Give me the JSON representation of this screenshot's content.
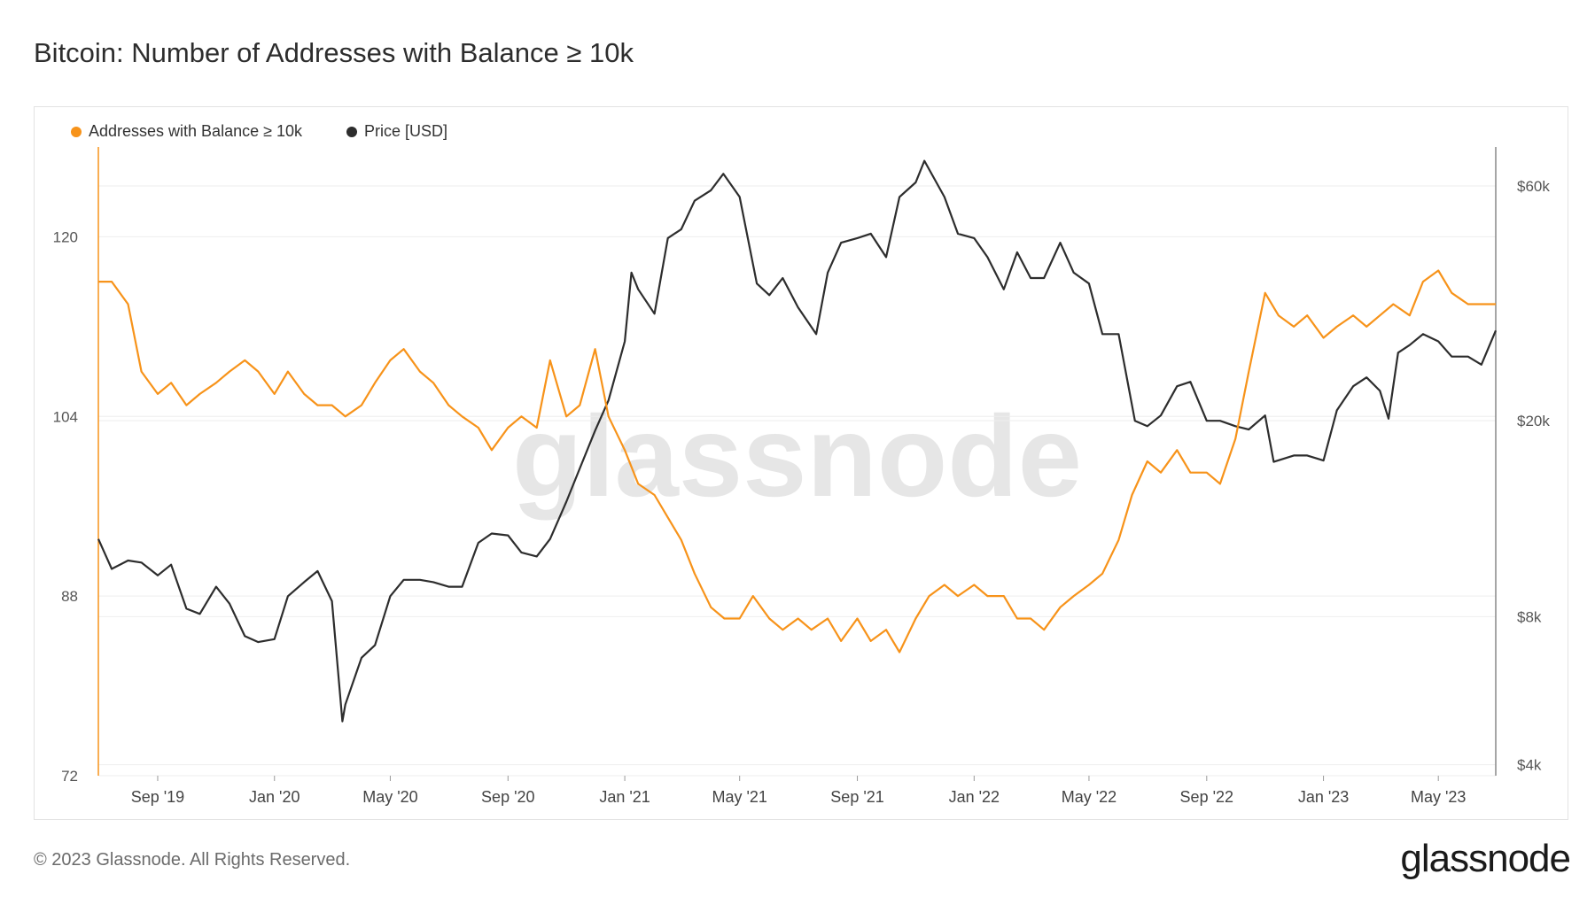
{
  "title": "Bitcoin: Number of Addresses with Balance ≥ 10k",
  "footer": "© 2023 Glassnode. All Rights Reserved.",
  "brand": "glassnode",
  "watermark": "glassnode",
  "colors": {
    "addresses": "#f7931a",
    "price": "#2d2d2d",
    "grid": "#eeeeee"
  },
  "chart_data": {
    "type": "line",
    "legend_position": "top-left",
    "grid": true,
    "x_ticks": [
      "Sep '19",
      "Jan '20",
      "May '20",
      "Sep '20",
      "Jan '21",
      "May '21",
      "Sep '21",
      "Jan '22",
      "May '22",
      "Sep '22",
      "Jan '23",
      "May '23"
    ],
    "x_range": [
      "2019-07-01",
      "2023-06-30"
    ],
    "y_left": {
      "ticks": [
        "120",
        "104",
        "88",
        "72"
      ],
      "ylim": [
        72,
        128
      ]
    },
    "y_right": {
      "scale": "log",
      "ticks": [
        "$60k",
        "$20k",
        "$8k",
        "$4k"
      ],
      "ylim": [
        3800,
        72000
      ]
    },
    "series": [
      {
        "name": "Addresses with Balance ≥ 10k",
        "axis": "left",
        "x": [
          "2019-07-01",
          "2019-07-15",
          "2019-08-01",
          "2019-08-15",
          "2019-09-01",
          "2019-09-15",
          "2019-10-01",
          "2019-10-15",
          "2019-11-01",
          "2019-11-15",
          "2019-12-01",
          "2019-12-15",
          "2020-01-01",
          "2020-01-15",
          "2020-02-01",
          "2020-02-15",
          "2020-03-01",
          "2020-03-15",
          "2020-04-01",
          "2020-04-15",
          "2020-05-01",
          "2020-05-15",
          "2020-06-01",
          "2020-06-15",
          "2020-07-01",
          "2020-07-15",
          "2020-08-01",
          "2020-08-15",
          "2020-09-01",
          "2020-09-15",
          "2020-10-01",
          "2020-10-15",
          "2020-11-01",
          "2020-11-15",
          "2020-12-01",
          "2020-12-15",
          "2021-01-01",
          "2021-01-15",
          "2021-02-01",
          "2021-02-15",
          "2021-03-01",
          "2021-03-15",
          "2021-04-01",
          "2021-04-15",
          "2021-05-01",
          "2021-05-15",
          "2021-06-01",
          "2021-06-15",
          "2021-07-01",
          "2021-07-15",
          "2021-08-01",
          "2021-08-15",
          "2021-09-01",
          "2021-09-15",
          "2021-10-01",
          "2021-10-15",
          "2021-11-01",
          "2021-11-15",
          "2021-12-01",
          "2021-12-15",
          "2022-01-01",
          "2022-01-15",
          "2022-02-01",
          "2022-02-15",
          "2022-03-01",
          "2022-03-15",
          "2022-04-01",
          "2022-04-15",
          "2022-05-01",
          "2022-05-15",
          "2022-06-01",
          "2022-06-15",
          "2022-07-01",
          "2022-07-15",
          "2022-08-01",
          "2022-08-15",
          "2022-09-01",
          "2022-09-15",
          "2022-10-01",
          "2022-10-15",
          "2022-11-01",
          "2022-11-15",
          "2022-12-01",
          "2022-12-15",
          "2023-01-01",
          "2023-01-15",
          "2023-02-01",
          "2023-02-15",
          "2023-03-01",
          "2023-03-15",
          "2023-04-01",
          "2023-04-15",
          "2023-05-01",
          "2023-05-15",
          "2023-06-01",
          "2023-06-15",
          "2023-06-30"
        ],
        "values": [
          116,
          116,
          114,
          108,
          106,
          107,
          105,
          106,
          107,
          108,
          109,
          108,
          106,
          108,
          106,
          105,
          105,
          104,
          105,
          107,
          109,
          110,
          108,
          107,
          105,
          104,
          103,
          101,
          103,
          104,
          103,
          109,
          104,
          105,
          110,
          104,
          101,
          98,
          97,
          95,
          93,
          90,
          87,
          86,
          86,
          88,
          86,
          85,
          86,
          85,
          86,
          84,
          86,
          84,
          85,
          83,
          86,
          88,
          89,
          88,
          89,
          88,
          88,
          86,
          86,
          85,
          87,
          88,
          89,
          90,
          93,
          97,
          100,
          99,
          101,
          99,
          99,
          98,
          102,
          108,
          115,
          113,
          112,
          113,
          111,
          112,
          113,
          112,
          113,
          114,
          113,
          116,
          117,
          115,
          114,
          114,
          114
        ]
      },
      {
        "name": "Price [USD]",
        "axis": "right",
        "x": [
          "2019-07-01",
          "2019-07-15",
          "2019-08-01",
          "2019-08-15",
          "2019-09-01",
          "2019-09-15",
          "2019-10-01",
          "2019-10-15",
          "2019-11-01",
          "2019-11-15",
          "2019-12-01",
          "2019-12-15",
          "2020-01-01",
          "2020-01-15",
          "2020-02-01",
          "2020-02-15",
          "2020-03-01",
          "2020-03-12",
          "2020-03-15",
          "2020-04-01",
          "2020-04-15",
          "2020-05-01",
          "2020-05-15",
          "2020-06-01",
          "2020-06-15",
          "2020-07-01",
          "2020-07-15",
          "2020-08-01",
          "2020-08-15",
          "2020-09-01",
          "2020-09-15",
          "2020-10-01",
          "2020-10-15",
          "2020-11-01",
          "2020-11-15",
          "2020-12-01",
          "2020-12-15",
          "2021-01-01",
          "2021-01-08",
          "2021-01-15",
          "2021-02-01",
          "2021-02-15",
          "2021-03-01",
          "2021-03-15",
          "2021-04-01",
          "2021-04-14",
          "2021-05-01",
          "2021-05-19",
          "2021-06-01",
          "2021-06-15",
          "2021-07-01",
          "2021-07-20",
          "2021-08-01",
          "2021-08-15",
          "2021-09-01",
          "2021-09-15",
          "2021-10-01",
          "2021-10-15",
          "2021-11-01",
          "2021-11-10",
          "2021-12-01",
          "2021-12-15",
          "2022-01-01",
          "2022-01-15",
          "2022-02-01",
          "2022-02-15",
          "2022-03-01",
          "2022-03-15",
          "2022-04-01",
          "2022-04-15",
          "2022-05-01",
          "2022-05-15",
          "2022-06-01",
          "2022-06-18",
          "2022-07-01",
          "2022-07-15",
          "2022-08-01",
          "2022-08-15",
          "2022-09-01",
          "2022-09-15",
          "2022-10-01",
          "2022-10-15",
          "2022-11-01",
          "2022-11-10",
          "2022-12-01",
          "2022-12-15",
          "2023-01-01",
          "2023-01-15",
          "2023-02-01",
          "2023-02-15",
          "2023-03-01",
          "2023-03-10",
          "2023-03-20",
          "2023-04-01",
          "2023-04-15",
          "2023-05-01",
          "2023-05-15",
          "2023-06-01",
          "2023-06-15",
          "2023-06-30"
        ],
        "values": [
          11500,
          10000,
          10400,
          10300,
          9700,
          10200,
          8300,
          8100,
          9200,
          8500,
          7300,
          7100,
          7200,
          8800,
          9400,
          9900,
          8600,
          4900,
          5300,
          6600,
          7000,
          8800,
          9500,
          9500,
          9400,
          9200,
          9200,
          11300,
          11800,
          11700,
          10800,
          10600,
          11500,
          13700,
          16000,
          19100,
          22000,
          29000,
          40000,
          37000,
          33000,
          47000,
          49000,
          56000,
          58800,
          63500,
          57000,
          38000,
          36000,
          39000,
          34000,
          30000,
          40000,
          46000,
          47000,
          48000,
          43000,
          57000,
          61000,
          67500,
          57000,
          48000,
          47000,
          43000,
          37000,
          44000,
          39000,
          39000,
          46000,
          40000,
          38000,
          30000,
          30000,
          20000,
          19500,
          20500,
          23500,
          24000,
          20000,
          20000,
          19500,
          19200,
          20500,
          16500,
          17000,
          17000,
          16600,
          21000,
          23500,
          24500,
          23000,
          20200,
          27500,
          28500,
          30000,
          29000,
          27000,
          27000,
          26000,
          30500
        ]
      }
    ]
  }
}
